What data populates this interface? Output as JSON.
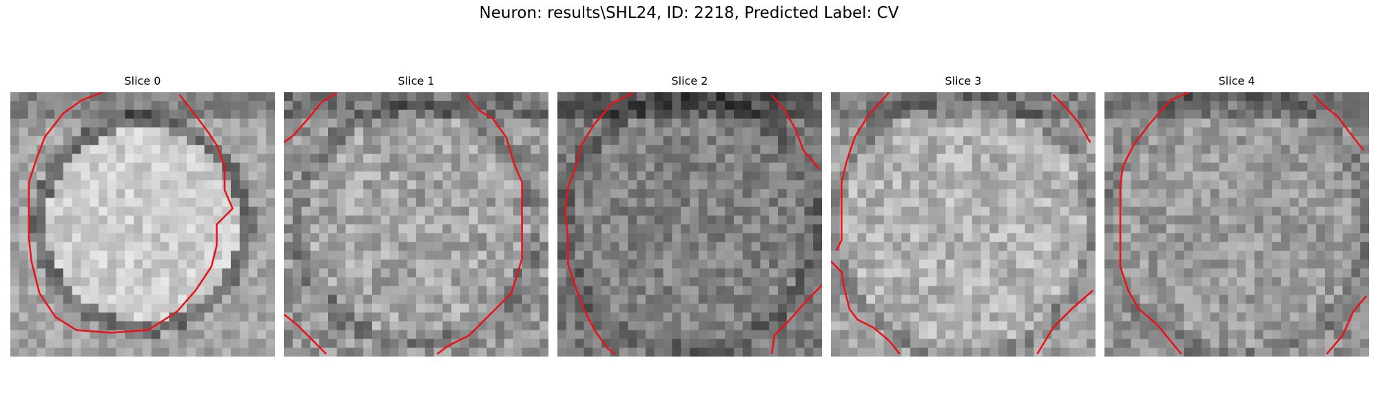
{
  "figure": {
    "title": "Neuron: results\\SHL24, ID: 2218, Predicted Label: CV"
  },
  "contour_color": "#e8141a",
  "slices": [
    {
      "title": "Slice 0",
      "contours": [
        [
          [
            0.35,
            0.0
          ],
          [
            0.27,
            0.03
          ],
          [
            0.2,
            0.08
          ],
          [
            0.13,
            0.17
          ],
          [
            0.1,
            0.25
          ],
          [
            0.07,
            0.34
          ],
          [
            0.07,
            0.55
          ],
          [
            0.08,
            0.64
          ],
          [
            0.11,
            0.76
          ],
          [
            0.17,
            0.85
          ],
          [
            0.25,
            0.9
          ],
          [
            0.38,
            0.91
          ],
          [
            0.52,
            0.9
          ],
          [
            0.63,
            0.83
          ],
          [
            0.7,
            0.75
          ],
          [
            0.76,
            0.66
          ],
          [
            0.78,
            0.58
          ],
          [
            0.78,
            0.5
          ],
          [
            0.84,
            0.44
          ],
          [
            0.81,
            0.37
          ],
          [
            0.81,
            0.28
          ],
          [
            0.78,
            0.2
          ],
          [
            0.74,
            0.14
          ],
          [
            0.64,
            0.01
          ]
        ]
      ]
    },
    {
      "title": "Slice 1",
      "contours": [
        [
          [
            0.2,
            0.0
          ],
          [
            0.14,
            0.04
          ],
          [
            0.1,
            0.09
          ],
          [
            0.04,
            0.16
          ],
          [
            0.0,
            0.19
          ]
        ],
        [
          [
            0.69,
            0.01
          ],
          [
            0.74,
            0.07
          ],
          [
            0.79,
            0.1
          ],
          [
            0.84,
            0.17
          ],
          [
            0.87,
            0.27
          ],
          [
            0.9,
            0.34
          ],
          [
            0.9,
            0.52
          ],
          [
            0.9,
            0.63
          ],
          [
            0.86,
            0.76
          ],
          [
            0.8,
            0.82
          ],
          [
            0.7,
            0.92
          ],
          [
            0.62,
            0.96
          ],
          [
            0.58,
            0.99
          ]
        ],
        [
          [
            0.0,
            0.84
          ],
          [
            0.05,
            0.88
          ],
          [
            0.1,
            0.93
          ],
          [
            0.16,
            0.99
          ]
        ]
      ]
    },
    {
      "title": "Slice 2",
      "contours": [
        [
          [
            0.29,
            0.0
          ],
          [
            0.21,
            0.04
          ],
          [
            0.14,
            0.12
          ],
          [
            0.09,
            0.2
          ],
          [
            0.07,
            0.28
          ],
          [
            0.04,
            0.36
          ],
          [
            0.03,
            0.45
          ],
          [
            0.04,
            0.56
          ],
          [
            0.04,
            0.65
          ],
          [
            0.07,
            0.74
          ],
          [
            0.1,
            0.82
          ],
          [
            0.14,
            0.9
          ],
          [
            0.19,
            0.97
          ],
          [
            0.22,
            0.99
          ]
        ],
        [
          [
            0.81,
            0.01
          ],
          [
            0.86,
            0.07
          ],
          [
            0.9,
            0.14
          ],
          [
            0.93,
            0.22
          ],
          [
            0.99,
            0.29
          ]
        ],
        [
          [
            1.0,
            0.73
          ],
          [
            0.94,
            0.79
          ],
          [
            0.88,
            0.86
          ],
          [
            0.82,
            0.92
          ],
          [
            0.81,
            0.99
          ]
        ]
      ]
    },
    {
      "title": "Slice 3",
      "contours": [
        [
          [
            0.22,
            0.0
          ],
          [
            0.14,
            0.09
          ],
          [
            0.09,
            0.17
          ],
          [
            0.06,
            0.26
          ],
          [
            0.04,
            0.34
          ],
          [
            0.04,
            0.45
          ],
          [
            0.04,
            0.56
          ],
          [
            0.02,
            0.6
          ]
        ],
        [
          [
            0.84,
            0.01
          ],
          [
            0.89,
            0.06
          ],
          [
            0.94,
            0.12
          ],
          [
            0.98,
            0.19
          ]
        ],
        [
          [
            0.0,
            0.64
          ],
          [
            0.04,
            0.68
          ],
          [
            0.05,
            0.74
          ],
          [
            0.07,
            0.82
          ],
          [
            0.1,
            0.86
          ],
          [
            0.16,
            0.89
          ],
          [
            0.22,
            0.94
          ],
          [
            0.26,
            0.99
          ]
        ],
        [
          [
            0.99,
            0.75
          ],
          [
            0.91,
            0.82
          ],
          [
            0.84,
            0.89
          ],
          [
            0.78,
            0.99
          ]
        ]
      ]
    },
    {
      "title": "Slice 4",
      "contours": [
        [
          [
            0.32,
            0.0
          ],
          [
            0.25,
            0.03
          ],
          [
            0.17,
            0.12
          ],
          [
            0.11,
            0.2
          ],
          [
            0.07,
            0.28
          ],
          [
            0.06,
            0.35
          ],
          [
            0.06,
            0.55
          ],
          [
            0.06,
            0.66
          ],
          [
            0.09,
            0.75
          ],
          [
            0.13,
            0.82
          ],
          [
            0.2,
            0.88
          ],
          [
            0.29,
            0.99
          ]
        ],
        [
          [
            0.79,
            0.01
          ],
          [
            0.84,
            0.06
          ],
          [
            0.88,
            0.09
          ],
          [
            0.94,
            0.17
          ],
          [
            0.98,
            0.22
          ]
        ],
        [
          [
            0.99,
            0.77
          ],
          [
            0.94,
            0.83
          ],
          [
            0.9,
            0.92
          ],
          [
            0.84,
            0.99
          ]
        ]
      ]
    }
  ]
}
